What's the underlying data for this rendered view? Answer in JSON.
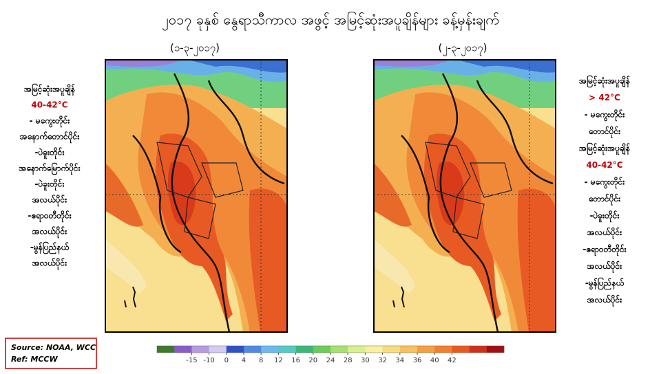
{
  "title": "၂၀၁၇ ခုနှစ် နွေရာသီကာလ အဖွင့် အမြင့်ဆုံးအပူချိန်များ ခန့်မှန်းချက်",
  "maps": [
    {
      "date": "(၁-၃-၂၀၁၇)"
    },
    {
      "date": "(၂-၃-၂၀၁၇)"
    }
  ],
  "left_notes": [
    {
      "text": "အမြင့်ဆုံးအပူချိန်",
      "color": "#000000"
    },
    {
      "text": "40-42°C",
      "color": "#c00000"
    },
    {
      "text": "- မကွေးတိုင်း",
      "color": "#000000"
    },
    {
      "text": "အနောက်တောင်ပိုင်း",
      "color": "#000000"
    },
    {
      "text": "-ပဲခူးတိုင်း",
      "color": "#000000"
    },
    {
      "text": "အနောက်မြောက်ပိုင်း",
      "color": "#000000"
    },
    {
      "text": "-ပဲခူးတိုင်း",
      "color": "#000000"
    },
    {
      "text": "အလယ်ပိုင်း",
      "color": "#000000"
    },
    {
      "text": "-ဧရာဝတီတိုင်း",
      "color": "#000000"
    },
    {
      "text": "အလယ်ပိုင်း",
      "color": "#000000"
    },
    {
      "text": "-မွန်ပြည်နယ်",
      "color": "#000000"
    },
    {
      "text": "အလယ်ပိုင်း",
      "color": "#000000"
    }
  ],
  "right_notes": [
    {
      "text": "အမြင့်ဆုံးအပူချိန်",
      "color": "#000000"
    },
    {
      "text": "> 42°C",
      "color": "#c00000"
    },
    {
      "text": "- မကွေးတိုင်း",
      "color": "#000000"
    },
    {
      "text": "တောင်ပိုင်း",
      "color": "#000000"
    },
    {
      "text": "အမြင့်ဆုံးအပူချိန်",
      "color": "#000000"
    },
    {
      "text": "40-42°C",
      "color": "#c00000"
    },
    {
      "text": "- မကွေးတိုင်း",
      "color": "#000000"
    },
    {
      "text": "တောင်ပိုင်း",
      "color": "#000000"
    },
    {
      "text": "-ပဲခူးတိုင်း",
      "color": "#000000"
    },
    {
      "text": "အလယ်ပိုင်း",
      "color": "#000000"
    },
    {
      "text": "-ဧရာဝတီတိုင်း",
      "color": "#000000"
    },
    {
      "text": "အလယ်ပိုင်း",
      "color": "#000000"
    },
    {
      "text": "-မွန်ပြည်နယ်",
      "color": "#000000"
    },
    {
      "text": "အလယ်ပိုင်း",
      "color": "#000000"
    }
  ],
  "source": [
    "Source: NOAA, WCC",
    "Ref: MCCW"
  ],
  "colorbar": {
    "ticks": [
      -15,
      -10,
      0,
      4,
      8,
      12,
      16,
      20,
      24,
      28,
      30,
      32,
      34,
      36,
      40,
      42
    ],
    "colors": [
      "#3d7a2a",
      "#8a5cc7",
      "#b59be0",
      "#d4ccf0",
      "#3050c8",
      "#4f8ae0",
      "#6fb8f0",
      "#55c8c8",
      "#3cb878",
      "#6ccc5a",
      "#a8e070",
      "#d8f090",
      "#f8f0a0",
      "#f8dc80",
      "#f8c060",
      "#f4a040",
      "#f08030",
      "#e85a20",
      "#d03018",
      "#a01010"
    ]
  }
}
